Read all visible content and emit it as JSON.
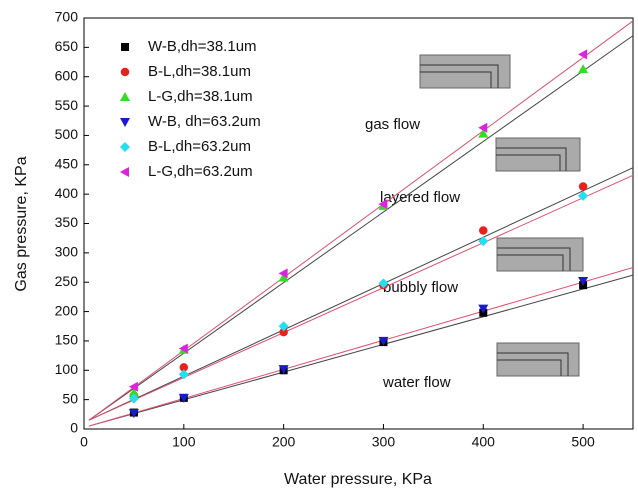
{
  "chart_data": {
    "type": "scatter",
    "x_label": "Water pressure, KPa",
    "y_label": "Gas pressure, KPa",
    "xlim": [
      0,
      550
    ],
    "xticks": [
      0,
      100,
      200,
      300,
      400,
      500
    ],
    "ylim": [
      0,
      700
    ],
    "yticks": [
      0,
      50,
      100,
      150,
      200,
      250,
      300,
      350,
      400,
      450,
      500,
      550,
      600,
      650,
      700
    ],
    "x": [
      50,
      100,
      200,
      300,
      400,
      500
    ],
    "series": [
      {
        "name": "W-B,dh=38.1um",
        "color": "#000000",
        "marker": "square",
        "values": [
          28,
          53,
          100,
          148,
          198,
          245
        ]
      },
      {
        "name": "B-L,dh=38.1um",
        "color": "#e8211d",
        "marker": "circle",
        "values": [
          57,
          105,
          165,
          245,
          338,
          413
        ]
      },
      {
        "name": "L-G,dh=38.1um",
        "color": "#33dd22",
        "marker": "triangle-up",
        "values": [
          62,
          135,
          258,
          380,
          503,
          613
        ]
      },
      {
        "name": "W-B, dh=63.2um",
        "color": "#1a1acc",
        "marker": "triangle-down",
        "values": [
          27,
          53,
          102,
          150,
          205,
          252
        ]
      },
      {
        "name": "B-L,dh=63.2um",
        "color": "#22e0f0",
        "marker": "diamond",
        "values": [
          52,
          93,
          175,
          248,
          320,
          397
        ]
      },
      {
        "name": "L-G,dh=63.2um",
        "color": "#dd22dd",
        "marker": "triangle-left",
        "values": [
          72,
          137,
          265,
          383,
          513,
          638
        ]
      }
    ],
    "fit_lines": [
      {
        "color": "#444444",
        "x": [
          5,
          550
        ],
        "values": [
          15,
          670
        ]
      },
      {
        "color": "#e05070",
        "x": [
          5,
          550
        ],
        "values": [
          15,
          695
        ]
      },
      {
        "color": "#444444",
        "x": [
          5,
          550
        ],
        "values": [
          15,
          445
        ]
      },
      {
        "color": "#e05070",
        "x": [
          5,
          550
        ],
        "values": [
          15,
          432
        ]
      },
      {
        "color": "#444444",
        "x": [
          5,
          550
        ],
        "values": [
          5,
          262
        ]
      },
      {
        "color": "#e05070",
        "x": [
          5,
          550
        ],
        "values": [
          5,
          275
        ]
      }
    ],
    "annotations": [
      "gas flow",
      "layered flow",
      "bubbly flow",
      "water flow"
    ]
  }
}
